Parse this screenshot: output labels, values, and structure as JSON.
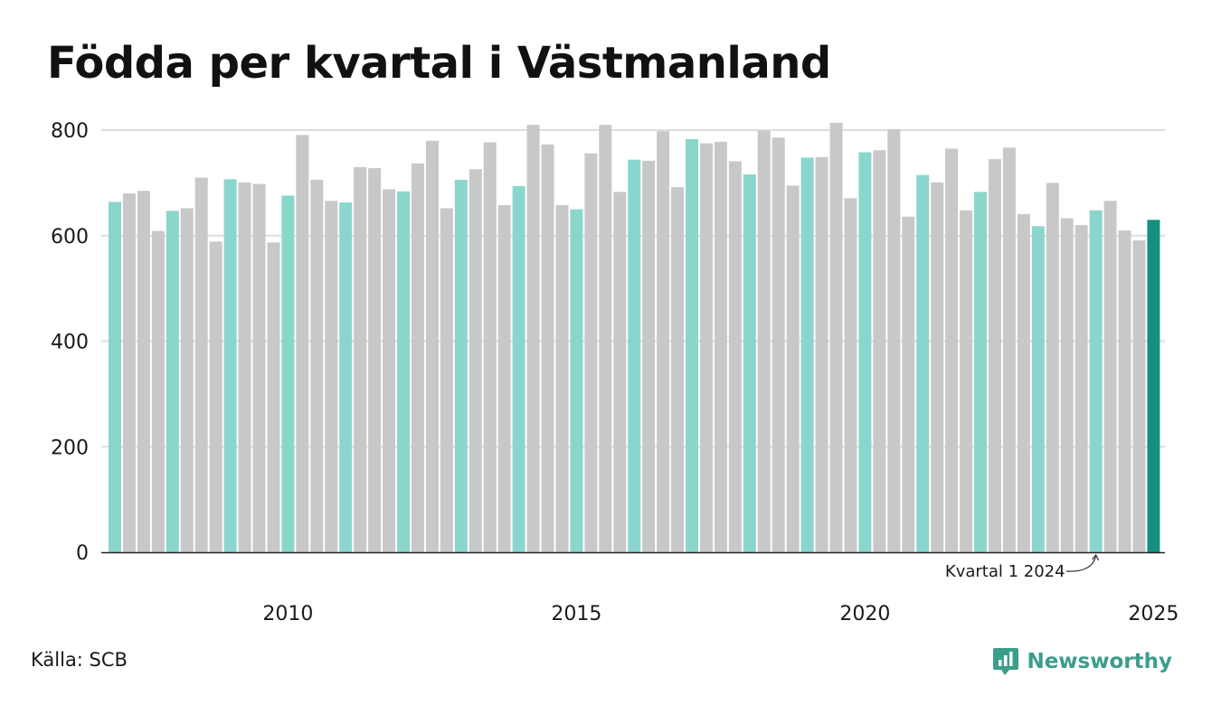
{
  "title": "Födda per kvartal i Västmanland",
  "source": "Källa: SCB",
  "brand": "Newsworthy",
  "colors": {
    "q1_bar": "#8ad6cd",
    "other_bar": "#c8c8c8",
    "latest_bar": "#14907e",
    "gridline": "#dddddd",
    "axis": "#222222",
    "brand": "#3a9e8a"
  },
  "chart_data": {
    "type": "bar",
    "title": "Födda per kvartal i Västmanland",
    "xlabel": "",
    "ylabel": "",
    "ylim": [
      0,
      800
    ],
    "yticks": [
      0,
      200,
      400,
      600,
      800
    ],
    "xticks": [
      {
        "label": "2010",
        "quarter": "2010 Q1"
      },
      {
        "label": "2015",
        "quarter": "2015 Q1"
      },
      {
        "label": "2020",
        "quarter": "2020 Q1"
      },
      {
        "label": "2025",
        "quarter": "2025 Q1"
      }
    ],
    "grid": true,
    "legend": "none",
    "highlight": "first quarter of each year",
    "categories": [
      "2007 Q1",
      "2007 Q2",
      "2007 Q3",
      "2007 Q4",
      "2008 Q1",
      "2008 Q2",
      "2008 Q3",
      "2008 Q4",
      "2009 Q1",
      "2009 Q2",
      "2009 Q3",
      "2009 Q4",
      "2010 Q1",
      "2010 Q2",
      "2010 Q3",
      "2010 Q4",
      "2011 Q1",
      "2011 Q2",
      "2011 Q3",
      "2011 Q4",
      "2012 Q1",
      "2012 Q2",
      "2012 Q3",
      "2012 Q4",
      "2013 Q1",
      "2013 Q2",
      "2013 Q3",
      "2013 Q4",
      "2014 Q1",
      "2014 Q2",
      "2014 Q3",
      "2014 Q4",
      "2015 Q1",
      "2015 Q2",
      "2015 Q3",
      "2015 Q4",
      "2016 Q1",
      "2016 Q2",
      "2016 Q3",
      "2016 Q4",
      "2017 Q1",
      "2017 Q2",
      "2017 Q3",
      "2017 Q4",
      "2018 Q1",
      "2018 Q2",
      "2018 Q3",
      "2018 Q4",
      "2019 Q1",
      "2019 Q2",
      "2019 Q3",
      "2019 Q4",
      "2020 Q1",
      "2020 Q2",
      "2020 Q3",
      "2020 Q4",
      "2021 Q1",
      "2021 Q2",
      "2021 Q3",
      "2021 Q4",
      "2022 Q1",
      "2022 Q2",
      "2022 Q3",
      "2022 Q4",
      "2023 Q1",
      "2023 Q2",
      "2023 Q3",
      "2023 Q4",
      "2024 Q1",
      "2024 Q2",
      "2024 Q3",
      "2024 Q4",
      "2025 Q1"
    ],
    "values": [
      664,
      680,
      685,
      609,
      647,
      652,
      710,
      589,
      707,
      701,
      698,
      587,
      676,
      791,
      706,
      666,
      663,
      730,
      728,
      688,
      684,
      737,
      780,
      652,
      706,
      726,
      777,
      658,
      694,
      810,
      773,
      658,
      650,
      756,
      810,
      683,
      744,
      742,
      798,
      692,
      783,
      775,
      778,
      741,
      716,
      799,
      786,
      695,
      748,
      749,
      814,
      671,
      758,
      762,
      802,
      636,
      715,
      701,
      765,
      648,
      683,
      745,
      767,
      641,
      618,
      700,
      633,
      620,
      648,
      666,
      610,
      591,
      630
    ],
    "annotations": [
      {
        "text": "Kvartal 1 2024",
        "target": "2024 Q1"
      }
    ]
  }
}
